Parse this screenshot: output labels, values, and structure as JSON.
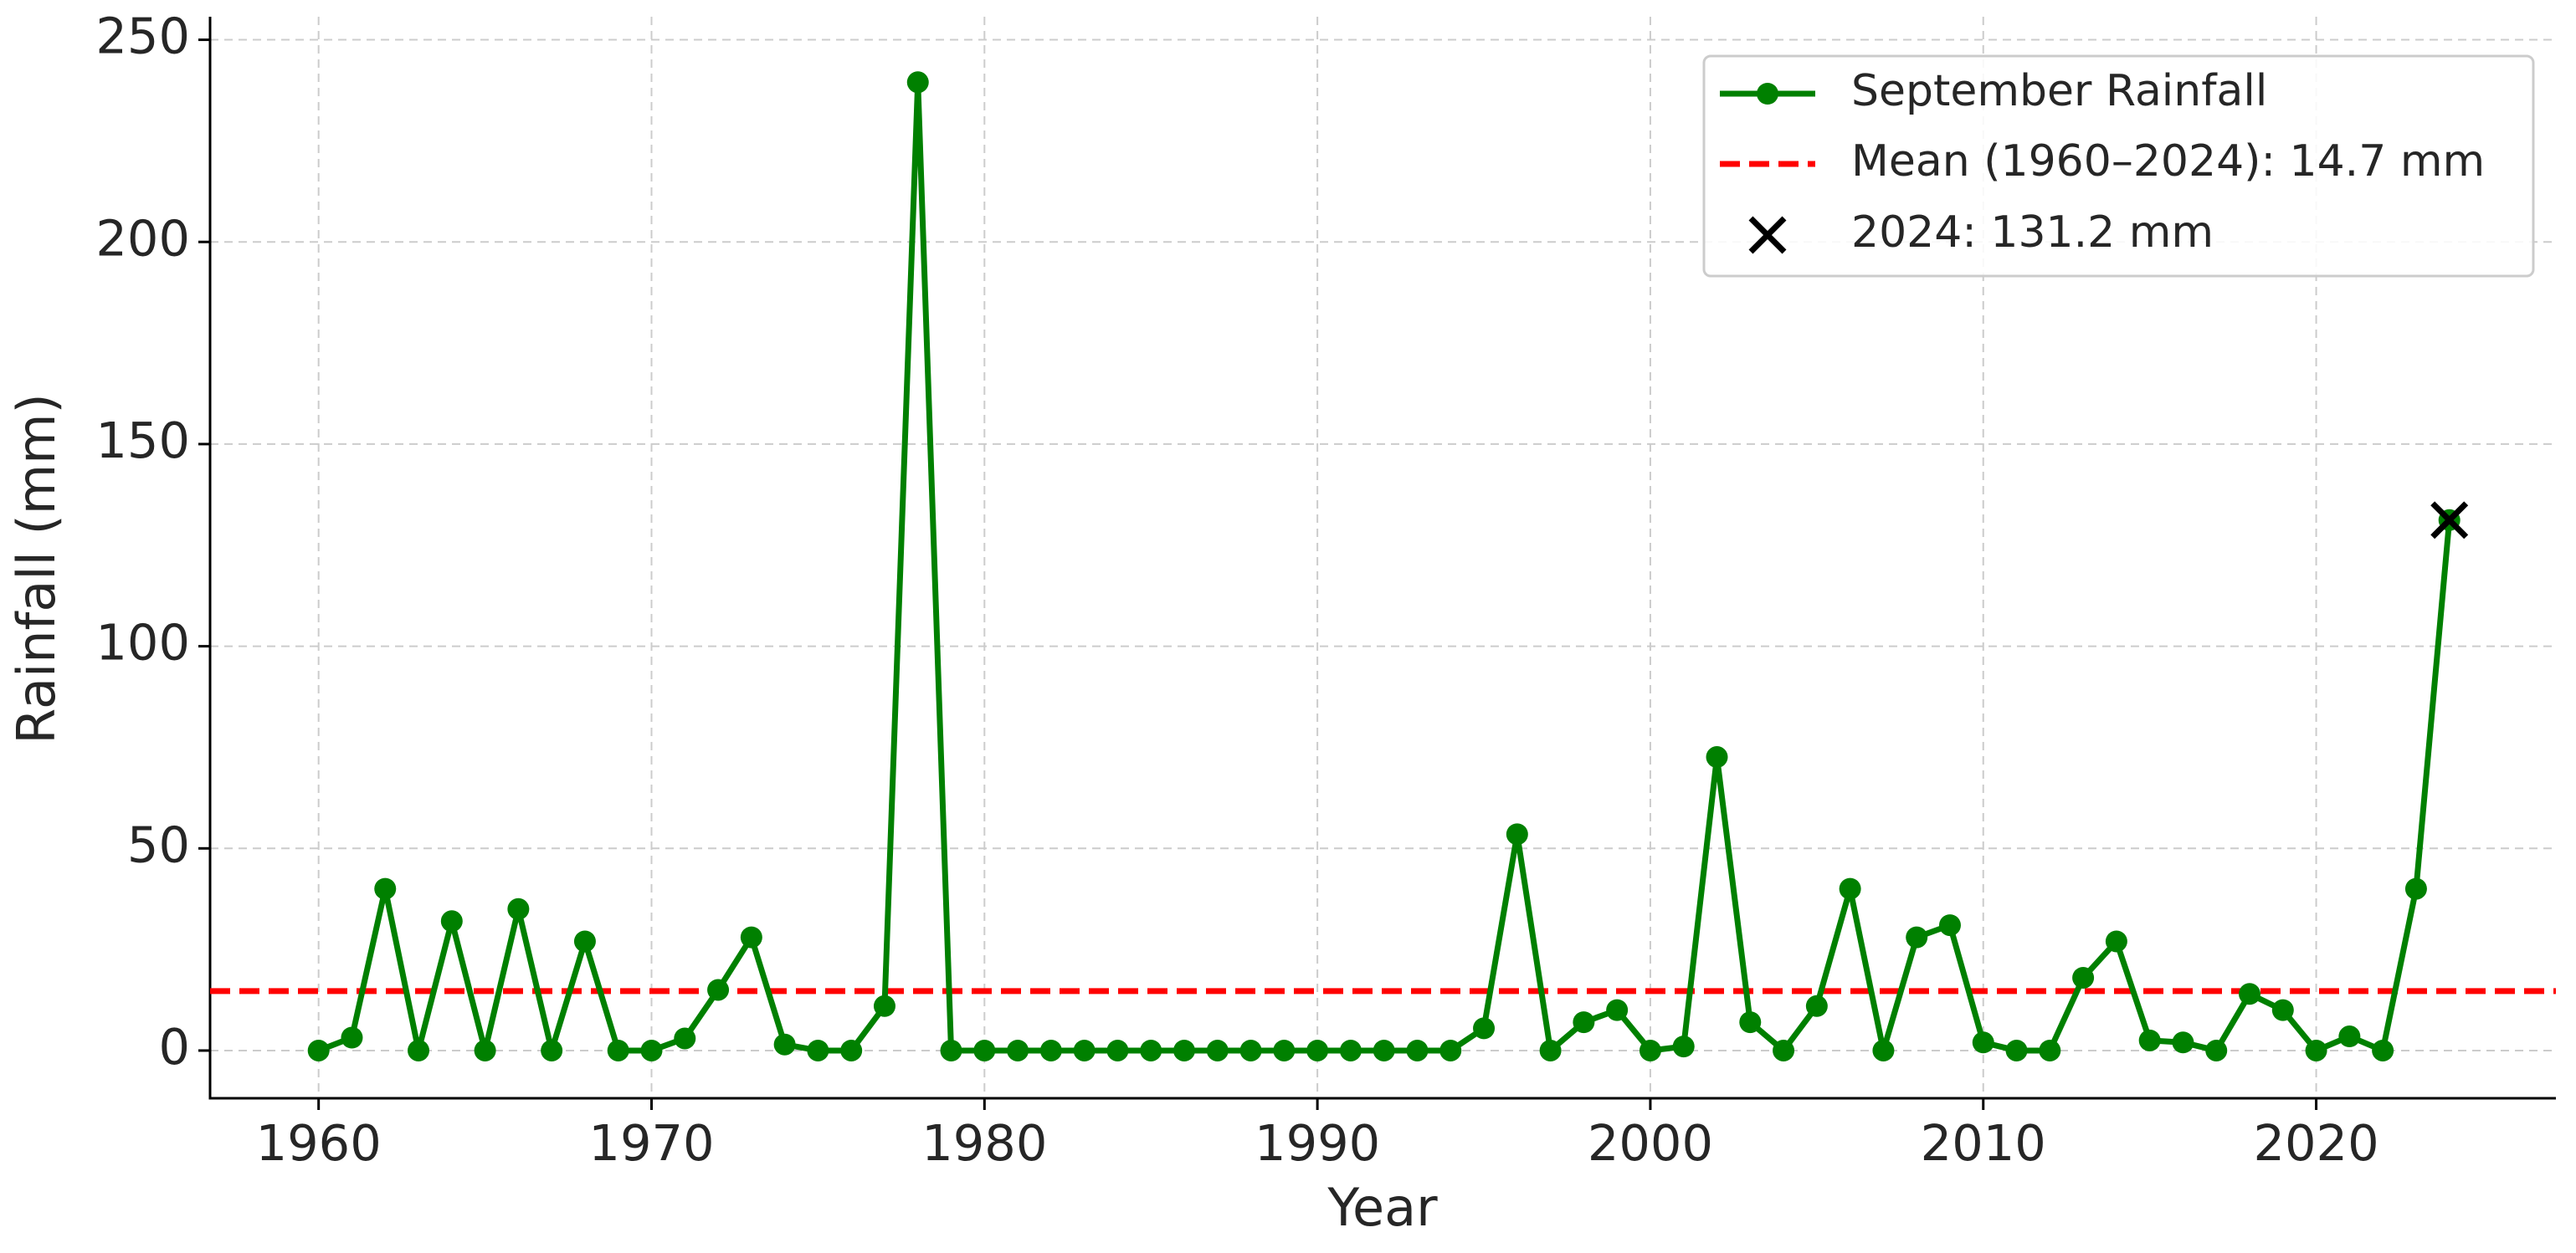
{
  "chart_data": {
    "type": "line",
    "x_label": "Year",
    "y_label": "Rainfall (mm)",
    "x": [
      1960,
      1961,
      1962,
      1963,
      1964,
      1965,
      1966,
      1967,
      1968,
      1969,
      1970,
      1971,
      1972,
      1973,
      1974,
      1975,
      1976,
      1977,
      1978,
      1979,
      1980,
      1981,
      1982,
      1983,
      1984,
      1985,
      1986,
      1987,
      1988,
      1989,
      1990,
      1991,
      1992,
      1993,
      1994,
      1995,
      1996,
      1997,
      1998,
      1999,
      2000,
      2001,
      2002,
      2003,
      2004,
      2005,
      2006,
      2007,
      2008,
      2009,
      2010,
      2011,
      2012,
      2013,
      2014,
      2015,
      2016,
      2017,
      2018,
      2019,
      2020,
      2021,
      2022,
      2023,
      2024
    ],
    "series": [
      {
        "name": "September Rainfall",
        "color": "#008000",
        "values": [
          0,
          3.2,
          40,
          0,
          32,
          0,
          35,
          0,
          27,
          0,
          0,
          3,
          15,
          28,
          1.5,
          0,
          0,
          11,
          239.5,
          0,
          0,
          0,
          0,
          0,
          0,
          0,
          0,
          0,
          0,
          0,
          0,
          0,
          0,
          0,
          0,
          5.5,
          53.5,
          0,
          7,
          10,
          0,
          1,
          72.6,
          7,
          0,
          11,
          40,
          0,
          28,
          31,
          2,
          0,
          0,
          18,
          27,
          2.5,
          2,
          0,
          14,
          10,
          0,
          3.5,
          0,
          40,
          131.2
        ]
      }
    ],
    "mean": {
      "name": "Mean (1960–2024): 14.7 mm",
      "value": 14.7,
      "color": "#ff0000"
    },
    "highlight": {
      "name": "2024: 131.2 mm",
      "x": 2024,
      "value": 131.2,
      "color": "#000000"
    },
    "xlim": [
      1956.74,
      2027.2
    ],
    "ylim": [
      -11.8,
      255.7
    ],
    "xticks": [
      1960,
      1970,
      1980,
      1990,
      2000,
      2010,
      2020
    ],
    "yticks": [
      0,
      50,
      100,
      150,
      200,
      250
    ],
    "grid": true,
    "legend": "upper-right"
  }
}
